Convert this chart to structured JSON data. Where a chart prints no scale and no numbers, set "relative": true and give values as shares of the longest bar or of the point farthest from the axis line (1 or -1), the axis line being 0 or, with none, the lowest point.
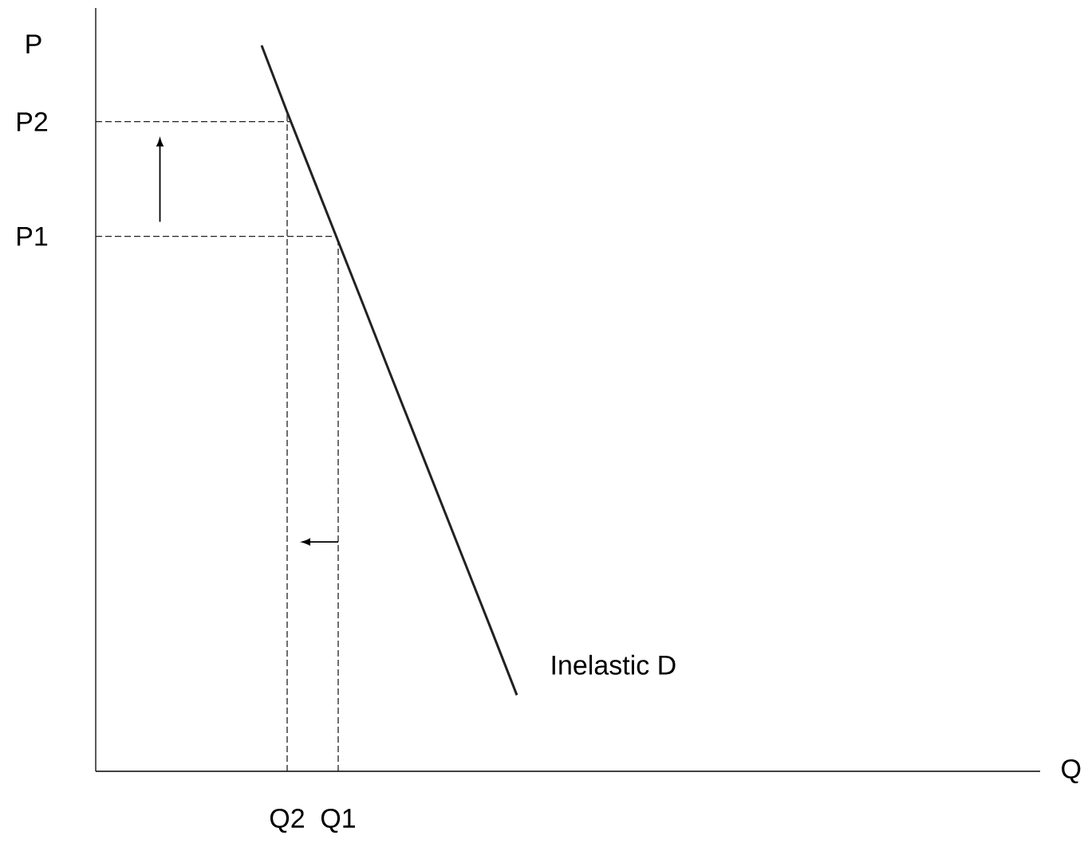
{
  "chart_data": {
    "type": "line",
    "relative": true,
    "xlabel": "Q",
    "ylabel": "P",
    "categories": [
      null,
      null,
      null,
      null,
      null,
      null,
      null,
      "Q2",
      null,
      "Q1",
      null,
      null,
      null,
      null,
      null,
      null,
      null,
      null,
      null,
      null,
      null,
      null,
      null,
      null,
      null,
      null,
      null,
      null,
      null,
      null,
      null,
      null,
      null,
      null,
      null,
      null,
      null
    ],
    "series": [
      {
        "name": "Inelastic D",
        "color": "#222222",
        "values": [
          null,
          null,
          null,
          null,
          null,
          null,
          1,
          0.908,
          0.819,
          0.73,
          0.641,
          0.551,
          0.462,
          0.373,
          0.284,
          0.195,
          0.105,
          null,
          null,
          null,
          null,
          null,
          null,
          null,
          null,
          null,
          null,
          null,
          null,
          null,
          null,
          null,
          null,
          null,
          null,
          null,
          null
        ]
      }
    ],
    "ref_lines": [
      {
        "axis": "y",
        "value": 0.895,
        "label": "P2",
        "color": "#222222",
        "line_style": "dashed"
      },
      {
        "axis": "y",
        "value": 0.737,
        "label": "P1",
        "color": "#222222",
        "line_style": "dashed"
      },
      {
        "axis": "x",
        "value": "Q2",
        "color": "#222222",
        "line_style": "dashed"
      },
      {
        "axis": "x",
        "value": "Q1",
        "color": "#222222",
        "line_style": "dashed"
      }
    ]
  }
}
